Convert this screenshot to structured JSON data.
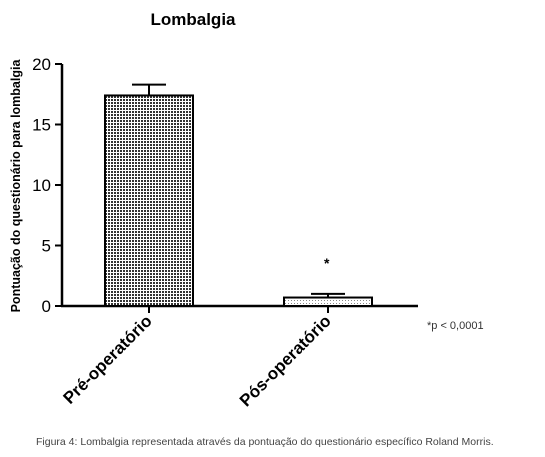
{
  "chart_data": {
    "type": "bar",
    "title": "Lombalgia",
    "ylabel": "Pontuação do questionário para lombalgia",
    "xlabel": "",
    "categories": [
      "Pré-operatório",
      "Pós-operatório"
    ],
    "values": [
      17.4,
      0.7
    ],
    "error": [
      0.9,
      0.3
    ],
    "ylim": [
      0,
      20
    ],
    "yticks": [
      "0",
      "5",
      "10",
      "15",
      "20"
    ],
    "significance_marker": "*",
    "annotation": "*p < 0,0001",
    "grid": false,
    "bar_fill": "dotted-pattern"
  },
  "caption": "Figura 4: Lombalgia representada através da pontuação do questionário específico Roland Morris."
}
